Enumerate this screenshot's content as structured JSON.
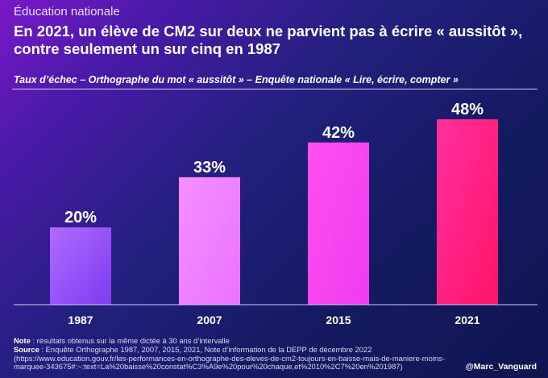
{
  "header": {
    "kicker": "Éducation nationale",
    "title_line1": "En 2021, un élève de CM2 sur deux ne parvient pas à écrire « aussitôt »,",
    "title_line2": "contre seulement un sur cinq en 1987"
  },
  "chart_data": {
    "type": "bar",
    "subtitle": "Taux d’échec – Orthographe du mot « aussitôt » – Enquête nationale « Lire, écrire, compter »",
    "categories": [
      "1987",
      "2007",
      "2015",
      "2021"
    ],
    "values": [
      20,
      33,
      42,
      48
    ],
    "value_labels": [
      "20%",
      "33%",
      "42%",
      "48%"
    ],
    "ylim": [
      0,
      48
    ],
    "grid": false,
    "bar_colors": [
      [
        "#b06bff",
        "#7e3bf0"
      ],
      [
        "#f590ff",
        "#ea72ff"
      ],
      [
        "#ff4ef1",
        "#f03cf0"
      ],
      [
        "#ff2fa0",
        "#ff1466"
      ]
    ]
  },
  "footer": {
    "note_label": "Note",
    "note_text": " : résultats obtenus sur la même dictée à 30 ans d’intervalle",
    "source_label": "Source",
    "source_text": " : Enquête Orthographe 1987, 2007, 2015, 2021, Note d’information de la DEPP de décembre 2022 (https://www.education.gouv.fr/les-performances-en-orthographe-des-eleves-de-cm2-toujours-en-baisse-mais-de-maniere-moins-marquee-343675#:~:text=La%20baisse%20constat%C3%A9e%20pour%20chaque,et%2010%2C7%20en%201987)",
    "handle": "@Marc_Vanguard"
  }
}
